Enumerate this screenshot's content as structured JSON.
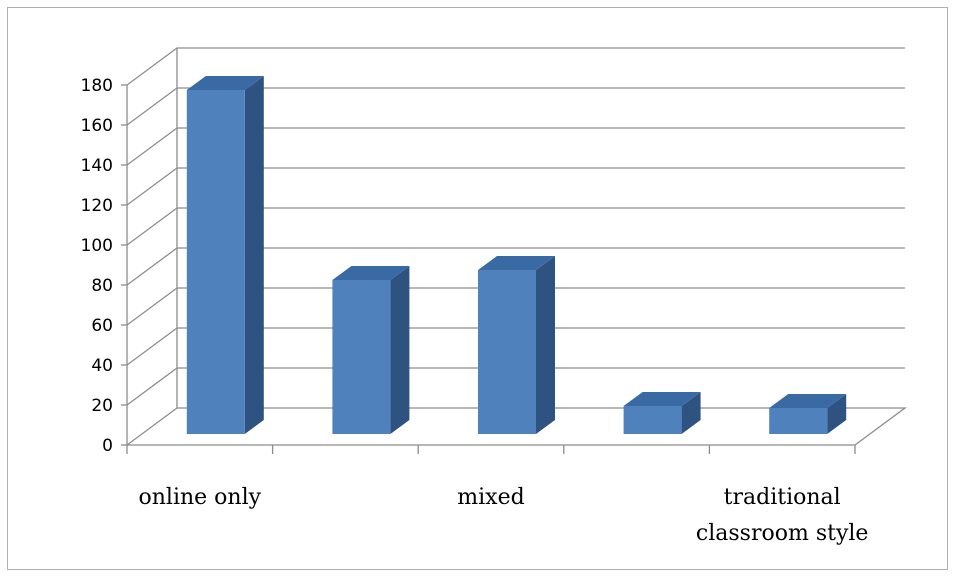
{
  "chart_data": {
    "type": "bar",
    "categories": [
      "online only",
      "",
      "mixed",
      "",
      "traditional classroom style"
    ],
    "category_label_lines": [
      [
        "online only"
      ],
      [],
      [
        "mixed"
      ],
      [],
      [
        "traditional",
        "classroom style"
      ]
    ],
    "values": [
      172,
      77,
      82,
      14,
      13
    ],
    "yticks": [
      0,
      20,
      40,
      60,
      80,
      100,
      120,
      140,
      160,
      180
    ],
    "ylim": [
      0,
      180
    ],
    "title": "",
    "xlabel": "",
    "ylabel": "",
    "grid": true,
    "legend": "none",
    "three_d": true
  },
  "colors": {
    "bar_front": "#4f81bd",
    "bar_side": "#2f5380",
    "bar_top": "#3a6aa4",
    "gridline": "#8c8c8c",
    "frame": "#b0b0b0"
  }
}
